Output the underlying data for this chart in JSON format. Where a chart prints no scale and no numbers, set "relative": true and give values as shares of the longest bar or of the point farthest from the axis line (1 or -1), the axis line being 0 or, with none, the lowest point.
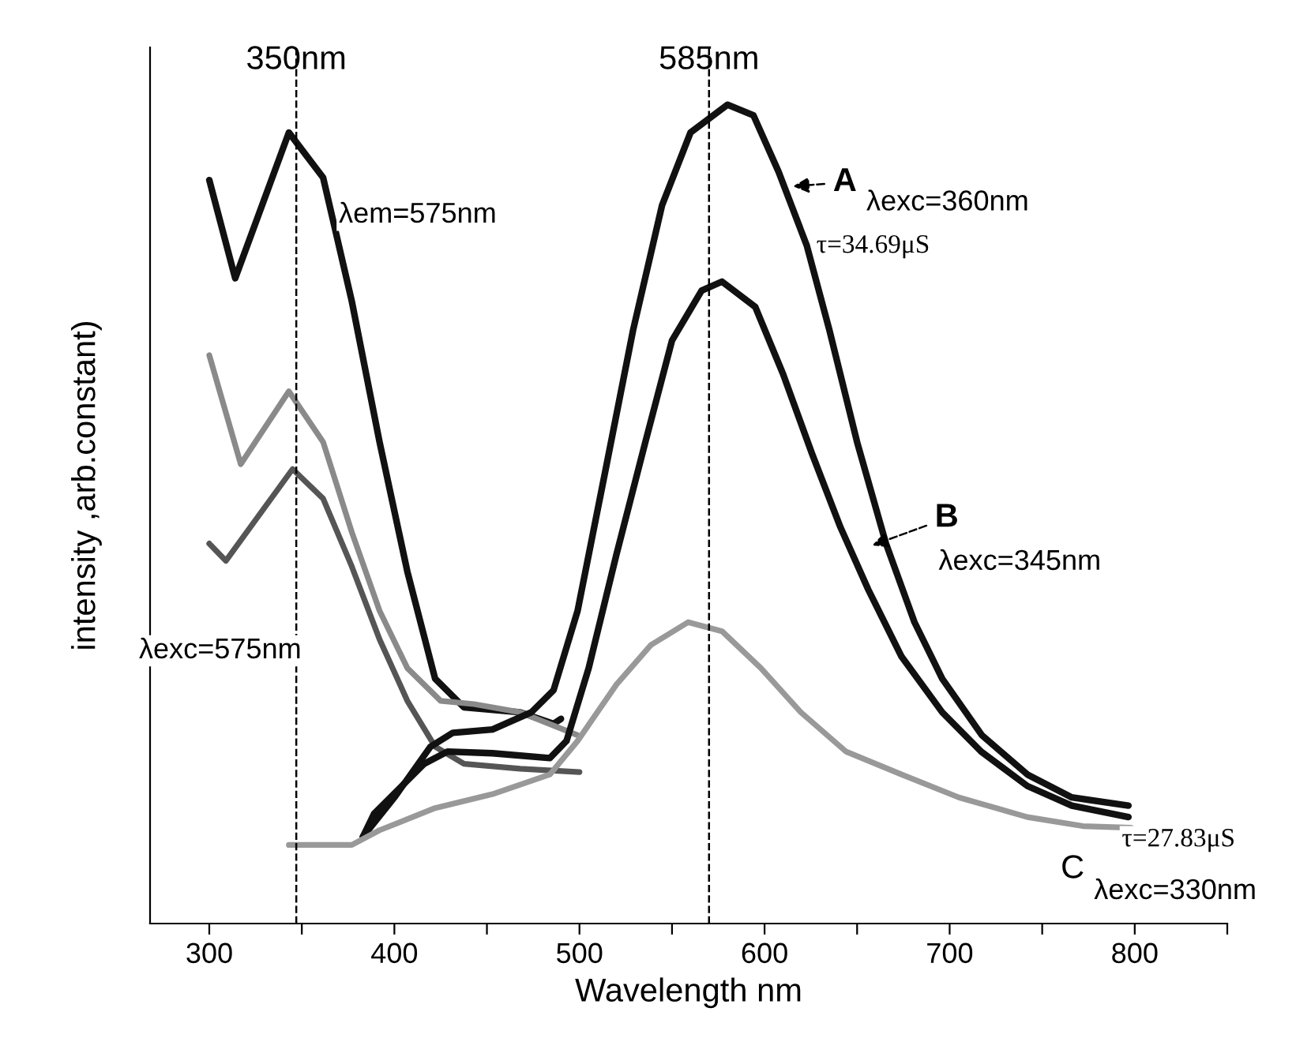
{
  "chart_data": {
    "type": "line",
    "relative": true,
    "xlabel": "Wavelength nm",
    "ylabel": "intensity ,arb.constant)",
    "xlim": [
      268,
      850
    ],
    "xticks": [
      300,
      {
        "value": 350,
        "label": null
      },
      400,
      {
        "value": 450,
        "label": null
      },
      500,
      {
        "value": 550,
        "label": null
      },
      600,
      {
        "value": 650,
        "label": null
      },
      700,
      {
        "value": 750,
        "label": null
      },
      800,
      {
        "value": 850,
        "label": null
      }
    ],
    "grid": false,
    "marker": "none",
    "line_style": "solid",
    "series": [
      {
        "color": "#111111",
        "x": [
          300,
          314,
          343,
          361.5,
          377,
          392,
          407,
          422,
          437.6,
          468,
          486,
          490
        ],
        "values": [
          0.908,
          0.788,
          0.966,
          0.911,
          0.76,
          0.588,
          0.43,
          0.299,
          0.264,
          0.258,
          0.244,
          0.25
        ]
      },
      {
        "color": "#8a8a8a",
        "x": [
          300,
          317,
          343,
          361.5,
          377,
          392,
          407,
          425,
          443,
          468,
          499
        ],
        "values": [
          0.694,
          0.561,
          0.65,
          0.588,
          0.478,
          0.382,
          0.312,
          0.272,
          0.268,
          0.258,
          0.23
        ]
      },
      {
        "color": "#555555",
        "x": [
          300,
          309,
          345,
          361.5,
          377,
          392,
          407,
          422,
          437.6,
          468,
          500
        ],
        "values": [
          0.464,
          0.443,
          0.555,
          0.519,
          0.436,
          0.347,
          0.272,
          0.216,
          0.195,
          0.189,
          0.185
        ]
      },
      {
        "color": "#111111",
        "x": [
          383,
          400,
          419.5,
          431.6,
          453,
          474,
          486,
          499,
          514,
          529,
          544.6,
          560,
          580,
          594,
          607.6,
          622.8,
          635,
          650,
          665.6,
          681,
          696,
          717.4,
          742,
          766,
          796.6
        ],
        "values": [
          0.106,
          0.154,
          0.216,
          0.233,
          0.237,
          0.258,
          0.285,
          0.382,
          0.553,
          0.725,
          0.877,
          0.966,
          1.0,
          0.987,
          0.918,
          0.828,
          0.725,
          0.588,
          0.464,
          0.368,
          0.299,
          0.23,
          0.182,
          0.154,
          0.144
        ]
      },
      {
        "color": "#111111",
        "x": [
          383,
          389,
          416,
          428.7,
          453,
          484,
          493,
          505,
          520,
          535.6,
          550,
          566,
          577,
          595,
          610,
          625.6,
          641,
          656,
          674,
          696,
          717,
          742,
          766,
          796.6
        ],
        "values": [
          0.106,
          0.134,
          0.195,
          0.21,
          0.208,
          0.202,
          0.223,
          0.312,
          0.451,
          0.588,
          0.712,
          0.773,
          0.784,
          0.753,
          0.671,
          0.574,
          0.484,
          0.408,
          0.326,
          0.258,
          0.21,
          0.168,
          0.144,
          0.13
        ]
      },
      {
        "color": "#999999",
        "x": [
          343,
          377,
          392,
          422,
          453,
          484,
          499,
          520,
          538.5,
          558.7,
          577,
          598,
          619.6,
          644,
          674,
          705,
          742,
          772,
          798
        ],
        "values": [
          0.096,
          0.096,
          0.114,
          0.141,
          0.158,
          0.182,
          0.223,
          0.292,
          0.34,
          0.368,
          0.357,
          0.312,
          0.258,
          0.21,
          0.182,
          0.154,
          0.13,
          0.119,
          0.117
        ]
      }
    ],
    "ref_lines": [
      {
        "axis": "x",
        "value": 347,
        "label": "350nm",
        "color": "#000000",
        "line_style": "dashed"
      },
      {
        "axis": "x",
        "value": 570,
        "label": "585nm",
        "color": "#000000",
        "line_style": "dashed"
      }
    ],
    "annotations": [
      {
        "text": "A",
        "x": 613,
        "y": 0.9
      },
      "λexc=360nm",
      "τ=34.69μS",
      "λem=575nm",
      "λexc=575nm",
      {
        "text": "B",
        "x": 656,
        "y": 0.46
      },
      "λexc=345nm",
      "τ=27.83μS",
      "C",
      "λexc=330nm"
    ]
  }
}
